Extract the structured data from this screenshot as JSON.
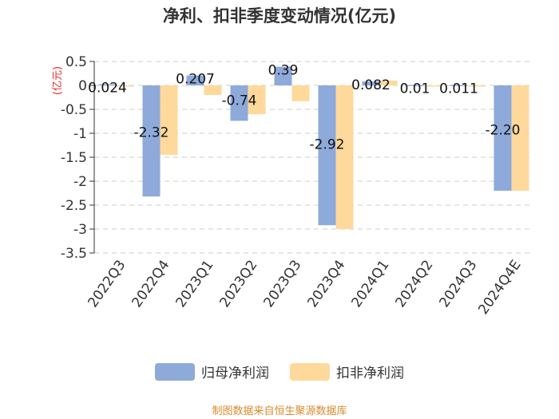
{
  "chart_data": {
    "type": "bar",
    "title": "净利、扣非季度变动情况(亿元)",
    "ylabel": "(亿元)",
    "categories": [
      "2022Q3",
      "2022Q4",
      "2023Q1",
      "2023Q2",
      "2023Q3",
      "2023Q4",
      "2024Q1",
      "2024Q2",
      "2024Q3",
      "2024Q4E"
    ],
    "series": [
      {
        "name": "归母净利润",
        "color": "#8eaadb",
        "values": [
          0.024,
          -2.32,
          0.207,
          -0.74,
          0.39,
          -2.92,
          0.082,
          0.01,
          0.011,
          -2.2
        ],
        "labels": [
          "0.024",
          "-2.32",
          "0.207",
          "-0.74",
          "0.39",
          "-2.92",
          "0.082",
          "0.01",
          "0.011",
          "-2.20"
        ]
      },
      {
        "name": "扣非净利润",
        "color": "#ffd99b",
        "values": [
          -0.02,
          -1.45,
          -0.2,
          -0.6,
          -0.33,
          -3.0,
          0.1,
          -0.02,
          -0.02,
          -2.2
        ],
        "labels": [
          "",
          "",
          "",
          "",
          "",
          "",
          "",
          "",
          "",
          ""
        ]
      }
    ],
    "ylim": [
      -3.5,
      0.5
    ],
    "yticks": [
      0.5,
      0,
      -0.5,
      -1,
      -1.5,
      -2,
      -2.5,
      -3,
      -3.5
    ],
    "ytick_labels": [
      "0.5",
      "0",
      "-0.5",
      "-1",
      "-1.5",
      "-2",
      "-2.5",
      "-3",
      "-3.5"
    ],
    "grid": true,
    "legend_position": "bottom"
  },
  "source_note": "制图数据来自恒生聚源数据库"
}
